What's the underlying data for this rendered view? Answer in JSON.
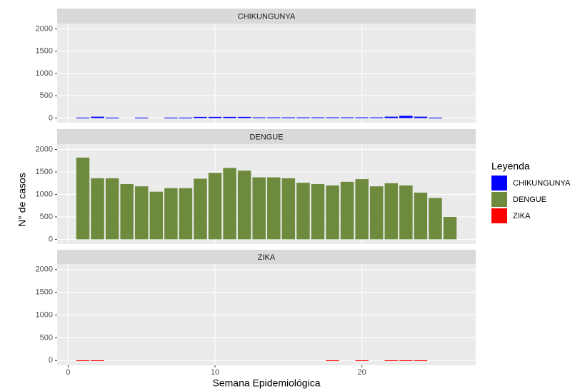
{
  "chart_data": {
    "type": "bar",
    "facet": true,
    "x_label": "Semana Epidemiológica",
    "y_label": "N° de casos",
    "legend_title": "Leyenda",
    "xlim": [
      -0.75,
      27.75
    ],
    "xticks": [
      0,
      10,
      20
    ],
    "ylim": [
      -105,
      2120
    ],
    "yticks": [
      0,
      500,
      1000,
      1500,
      2000
    ],
    "grid": true,
    "series": [
      {
        "name": "CHIKUNGUNYA",
        "color": "#0000FF",
        "x": [
          1,
          2,
          3,
          5,
          7,
          8,
          9,
          10,
          11,
          12,
          13,
          14,
          15,
          16,
          17,
          18,
          19,
          20,
          21,
          22,
          23,
          24,
          25
        ],
        "values": [
          10,
          30,
          10,
          10,
          10,
          10,
          25,
          25,
          25,
          25,
          15,
          15,
          15,
          15,
          15,
          15,
          15,
          15,
          15,
          30,
          50,
          30,
          10
        ]
      },
      {
        "name": "DENGUE",
        "color": "#6E8B3D",
        "x": [
          1,
          2,
          3,
          4,
          5,
          6,
          7,
          8,
          9,
          10,
          11,
          12,
          13,
          14,
          15,
          16,
          17,
          18,
          19,
          20,
          21,
          22,
          23,
          24,
          25,
          26
        ],
        "values": [
          1820,
          1360,
          1360,
          1230,
          1180,
          1060,
          1140,
          1140,
          1350,
          1480,
          1590,
          1530,
          1380,
          1380,
          1360,
          1260,
          1230,
          1200,
          1280,
          1340,
          1180,
          1250,
          1200,
          1040,
          920,
          500
        ]
      },
      {
        "name": "ZIKA",
        "color": "#FF0000",
        "x": [
          1,
          2,
          18,
          20,
          22,
          23,
          24
        ],
        "values": [
          5,
          5,
          5,
          5,
          5,
          5,
          5
        ]
      }
    ]
  }
}
